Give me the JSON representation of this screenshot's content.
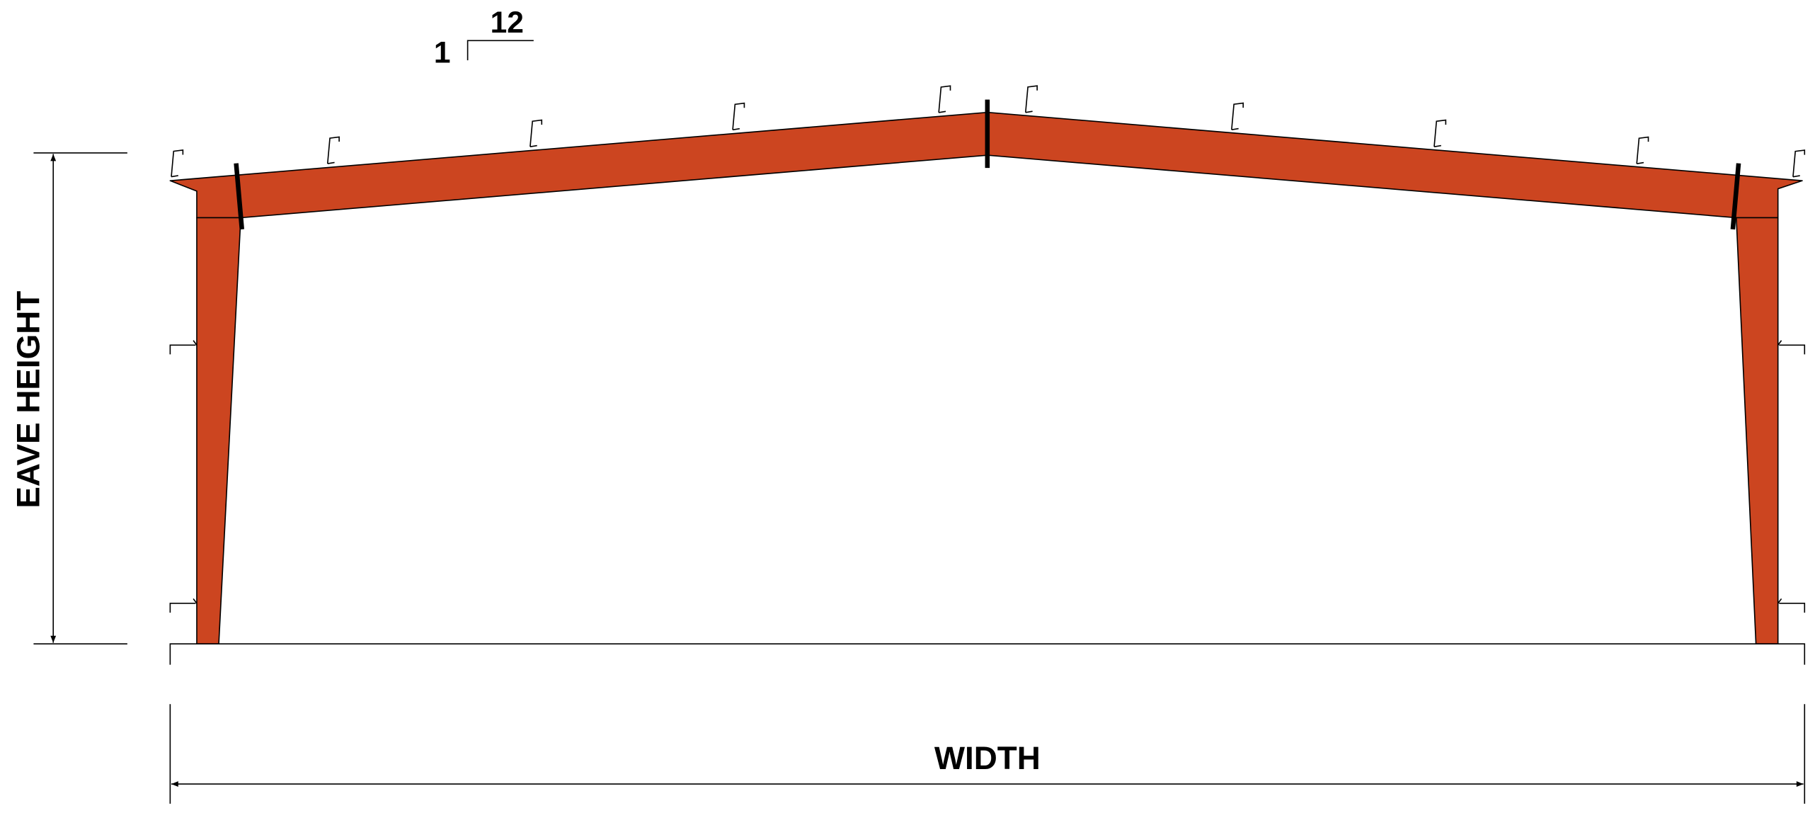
{
  "slope": {
    "run": 12,
    "rise": 1
  },
  "dimensions": {
    "eave_height": "EAVE HEIGHT",
    "width": "WIDTH"
  }
}
